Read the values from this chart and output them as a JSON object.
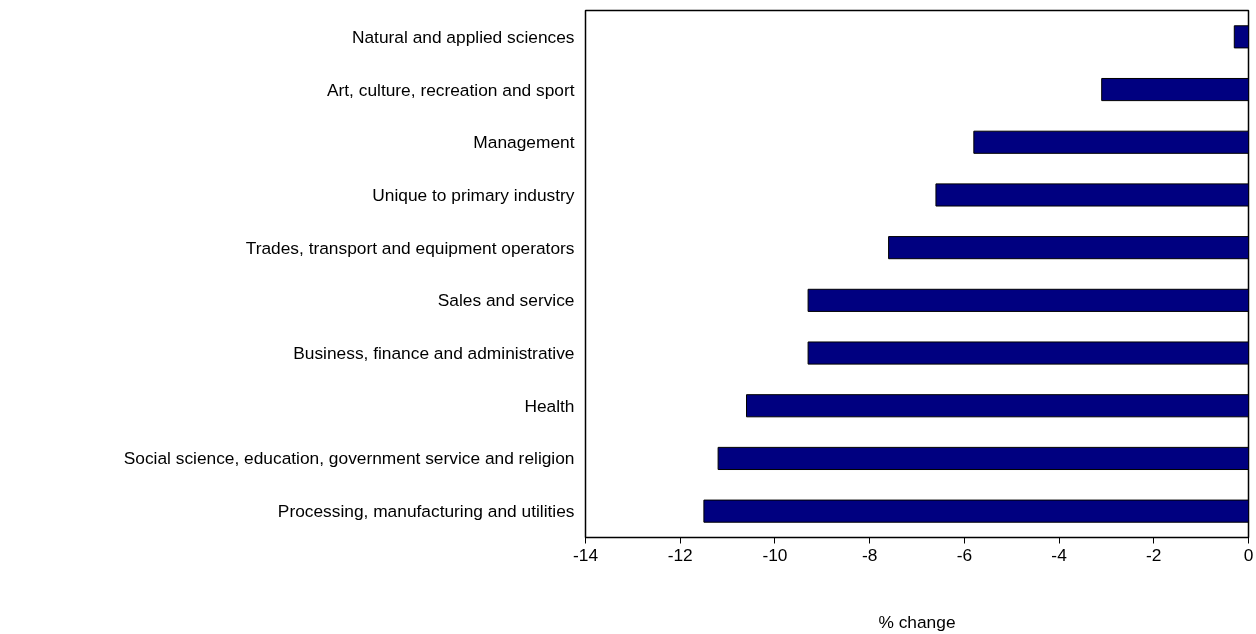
{
  "chart_data": {
    "type": "bar",
    "orientation": "horizontal",
    "xlabel": "% change",
    "categories": [
      "Natural and applied sciences",
      "Art, culture, recreation and sport",
      "Management",
      "Unique to primary industry",
      "Trades, transport and equipment operators",
      "Sales and service",
      "Business, finance and administrative",
      "Health",
      "Social science, education, government service and religion",
      "Processing, manufacturing and utilities"
    ],
    "values": [
      -0.3,
      -3.1,
      -5.8,
      -6.6,
      -7.6,
      -9.3,
      -9.3,
      -10.6,
      -11.2,
      -11.5
    ],
    "color": "#000080",
    "xlim": [
      -14,
      0
    ],
    "xticks": [
      -14,
      -12,
      -10,
      -8,
      -6,
      -4,
      -2,
      0
    ],
    "grid": false
  }
}
